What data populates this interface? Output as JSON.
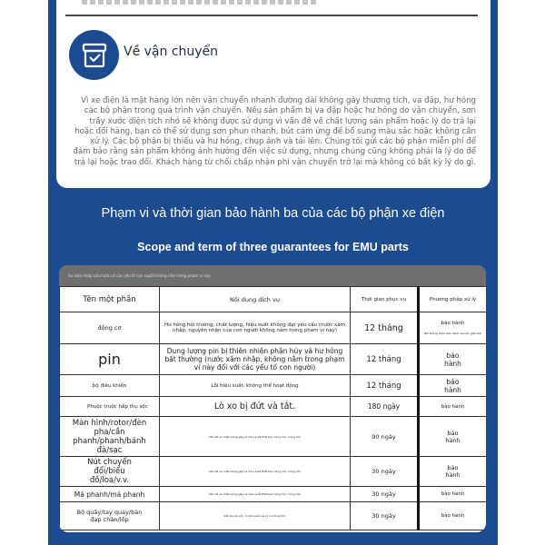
{
  "colors": {
    "panel": "#1c4b8f",
    "table_header_bar": "#6f6f72"
  },
  "shipping": {
    "icon": "box-check-icon",
    "title": "Về vận chuyển",
    "body": "Vì xe điện là mặt hàng lớn nên vận chuyển nhanh đường dài không gây thương tích, va đập, hư hỏng các bộ phận trong quá trình vận chuyển. Nếu sản phẩm bị va đập hoặc hư hỏng do vận chuyển, sơn trầy xước diện tích nhỏ sẽ không được sử dụng vì vấn đề về chất lượng sản phẩm hoặc lý do trả lại hoặc đổi hàng, bạn có thể sử dụng sơn phun nhanh, bút cảm ứng để bổ sung màu sắc hoặc không cần xử lý. Các bộ phận bị thiếu và hư hỏng, chụp ảnh và tải lên. Chúng tôi gửi các bộ phận miễn phí để đảm bảo rằng sản phẩm không ảnh hưởng đến việc sử dụng, nhưng chúng cũng không phải là lý do để trả lại hoặc trao đổi. Khách hàng từ chối chấp nhận phí vận chuyển trở lại mà không có bất kỳ lý do gì."
  },
  "warranty": {
    "title_vi": "Phạm vi và thời gian bảo hành ba của các bộ phận xe điện",
    "title_en": "Scope and term of three guarantees for EMU parts",
    "note": "Sự xâm nhập của nước và các yếu tố con người không nằm trong phạm vi này",
    "headers": [
      "Tên một phần",
      "Nội dung dịch vụ",
      "Thời gian phục vụ",
      "Phương pháp xử lý"
    ],
    "rows": [
      {
        "part": "động cơ",
        "content": "Hư hỏng hội trường, chất lượng, hiệu suất không đạt yêu cầu (nước xâm nhập, nguyên nhân của con người không nằm trong phạm vi này)",
        "time": "12 tháng",
        "method": "bảo hành",
        "method_note": "(Bộ không được bảo hành sau khi giải mã)"
      },
      {
        "part": "pin",
        "content": "Dung lượng pin bị thiên nhiên phân hủy và hư hỏng bất thường (nước xâm nhập, không nằm trong phạm vi này đối với các yếu tố con người)",
        "time": "12 tháng",
        "method": "bảo hành"
      },
      {
        "part": "bộ điều khiển",
        "content": "Lỗi hiệu suất, không thể hoạt động",
        "time": "12 tháng",
        "method": "bảo hành"
      },
      {
        "part": "Phuộc trước hấp thụ sốc",
        "content": "Lò xo bị đứt và tắt.",
        "time": "180 ngày",
        "method": "bảo hành"
      },
      {
        "part": "Màn hình/rotor/đèn pha/cần phanh/phanh/bánh đà/sạc",
        "content": "Vấn đề về chất lượng gây ra hiệu suất thất bại, hỏng hóc, hỏng hóc",
        "time": "90 ngày",
        "method": "bảo hành"
      },
      {
        "part": "Nút chuyển đổi/biểu đồ/loa/v.v.",
        "content": "Vấn đề về chất lượng gây ra hiệu suất thất bại, hỏng hóc, hỏng hóc",
        "time": "30 ngày",
        "method": "bảo hành"
      },
      {
        "part": "Má phanh/má phanh",
        "content": "Vấn đề về chất lượng gây ra hiệu suất thất bại, hỏng hóc, hỏng hóc",
        "time": "30 ngày",
        "method": "bảo hành"
      },
      {
        "part": "Bộ quây/tay quay/bàn đạp chân/lốp",
        "content": "Vật liệu bị nứt, có khí quản và rò rỉ không khí.",
        "time": "30 ngày",
        "method": "bảo hành"
      }
    ]
  }
}
